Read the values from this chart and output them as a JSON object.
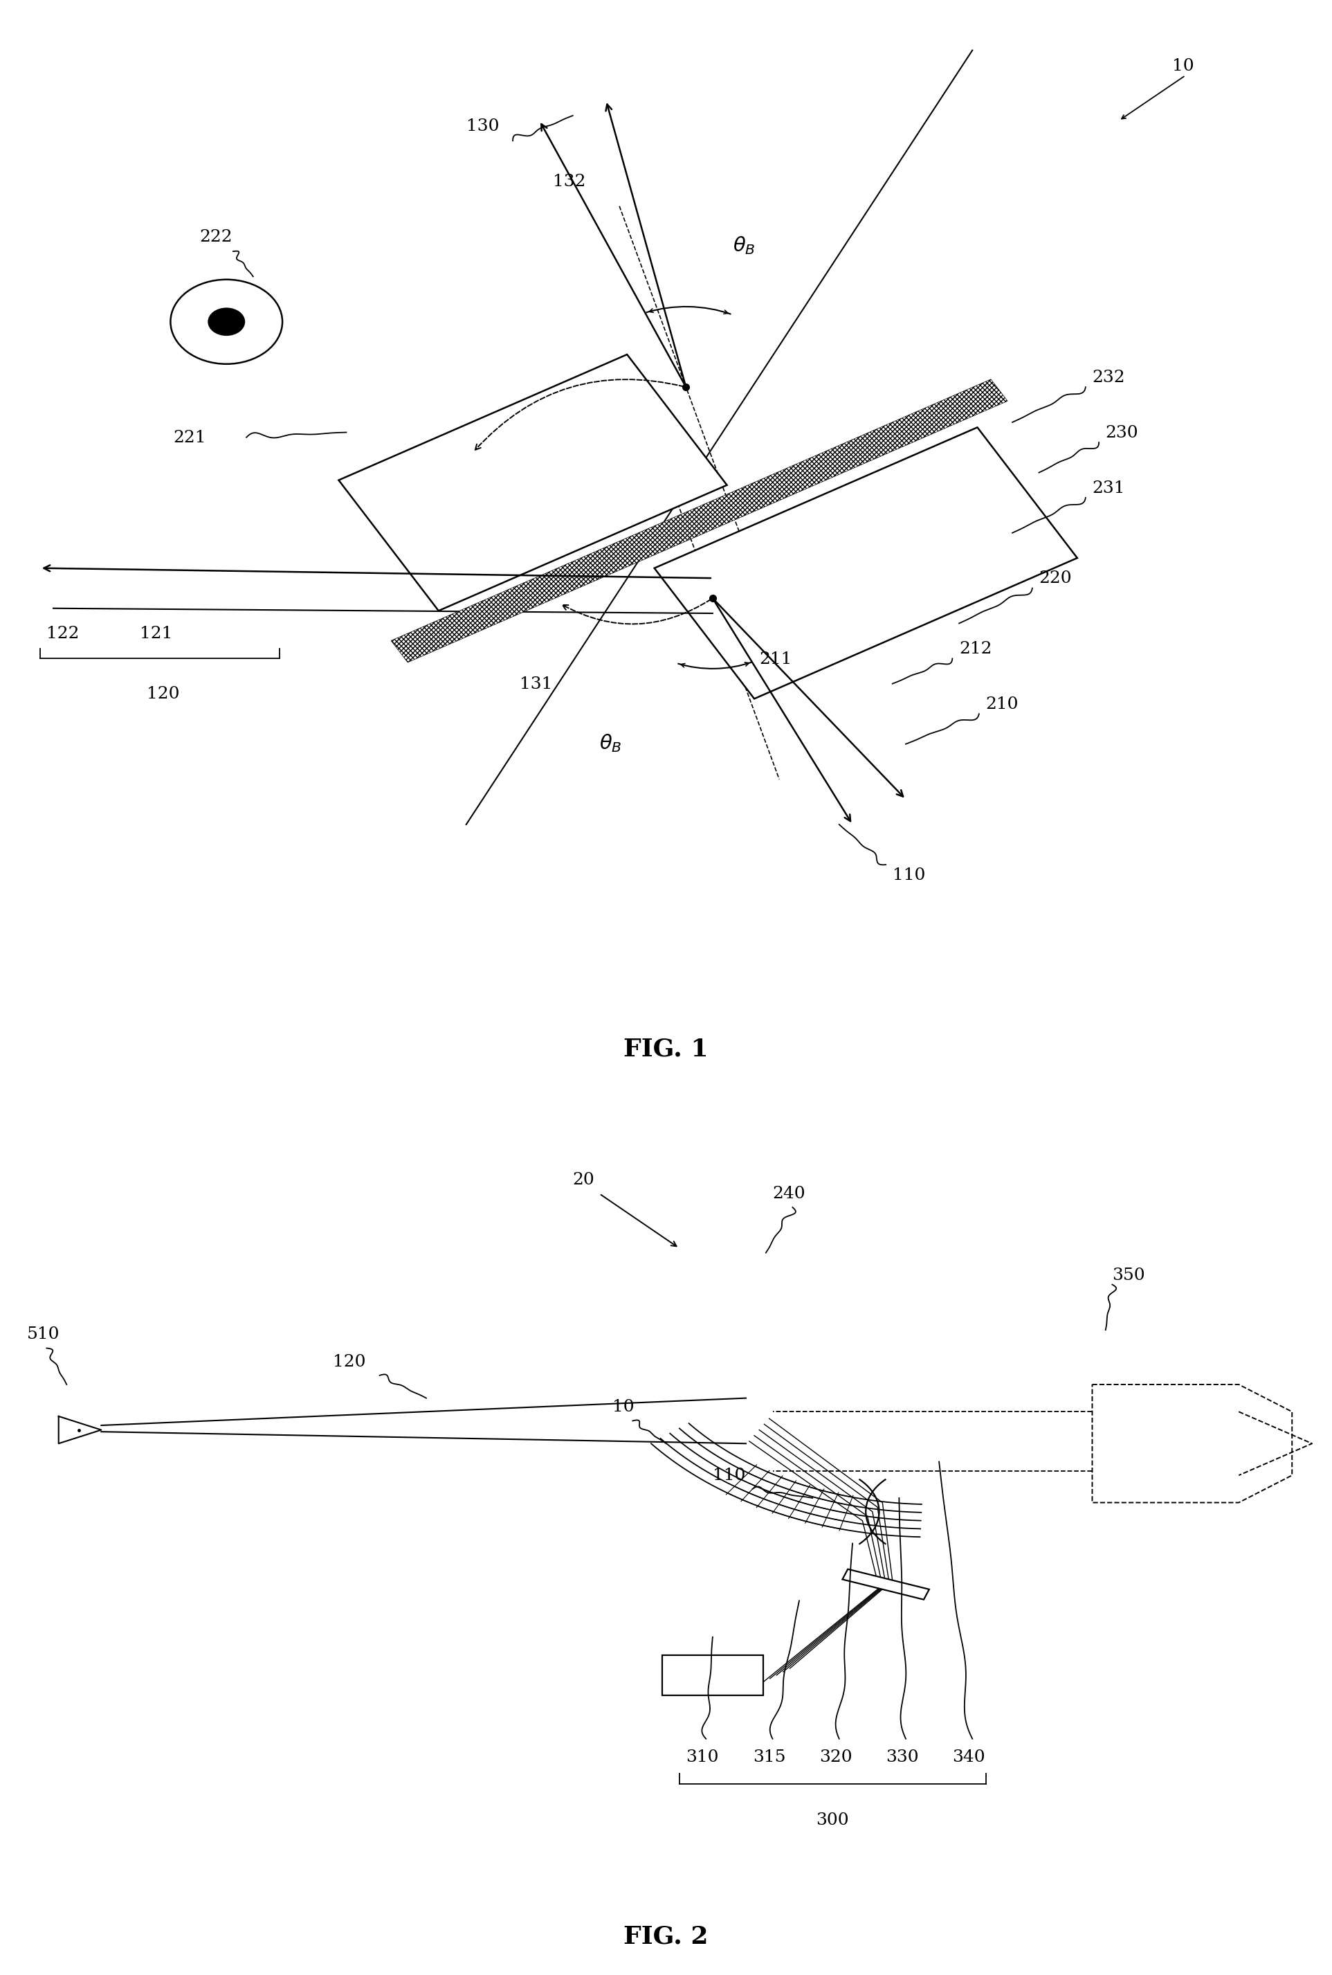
{
  "fig_width": 19.25,
  "fig_height": 28.53,
  "bg_color": "#ffffff",
  "line_color": "#000000",
  "fig1_title": "FIG. 1",
  "fig2_title": "FIG. 2",
  "label_fontsize": 18,
  "title_fontsize": 26
}
